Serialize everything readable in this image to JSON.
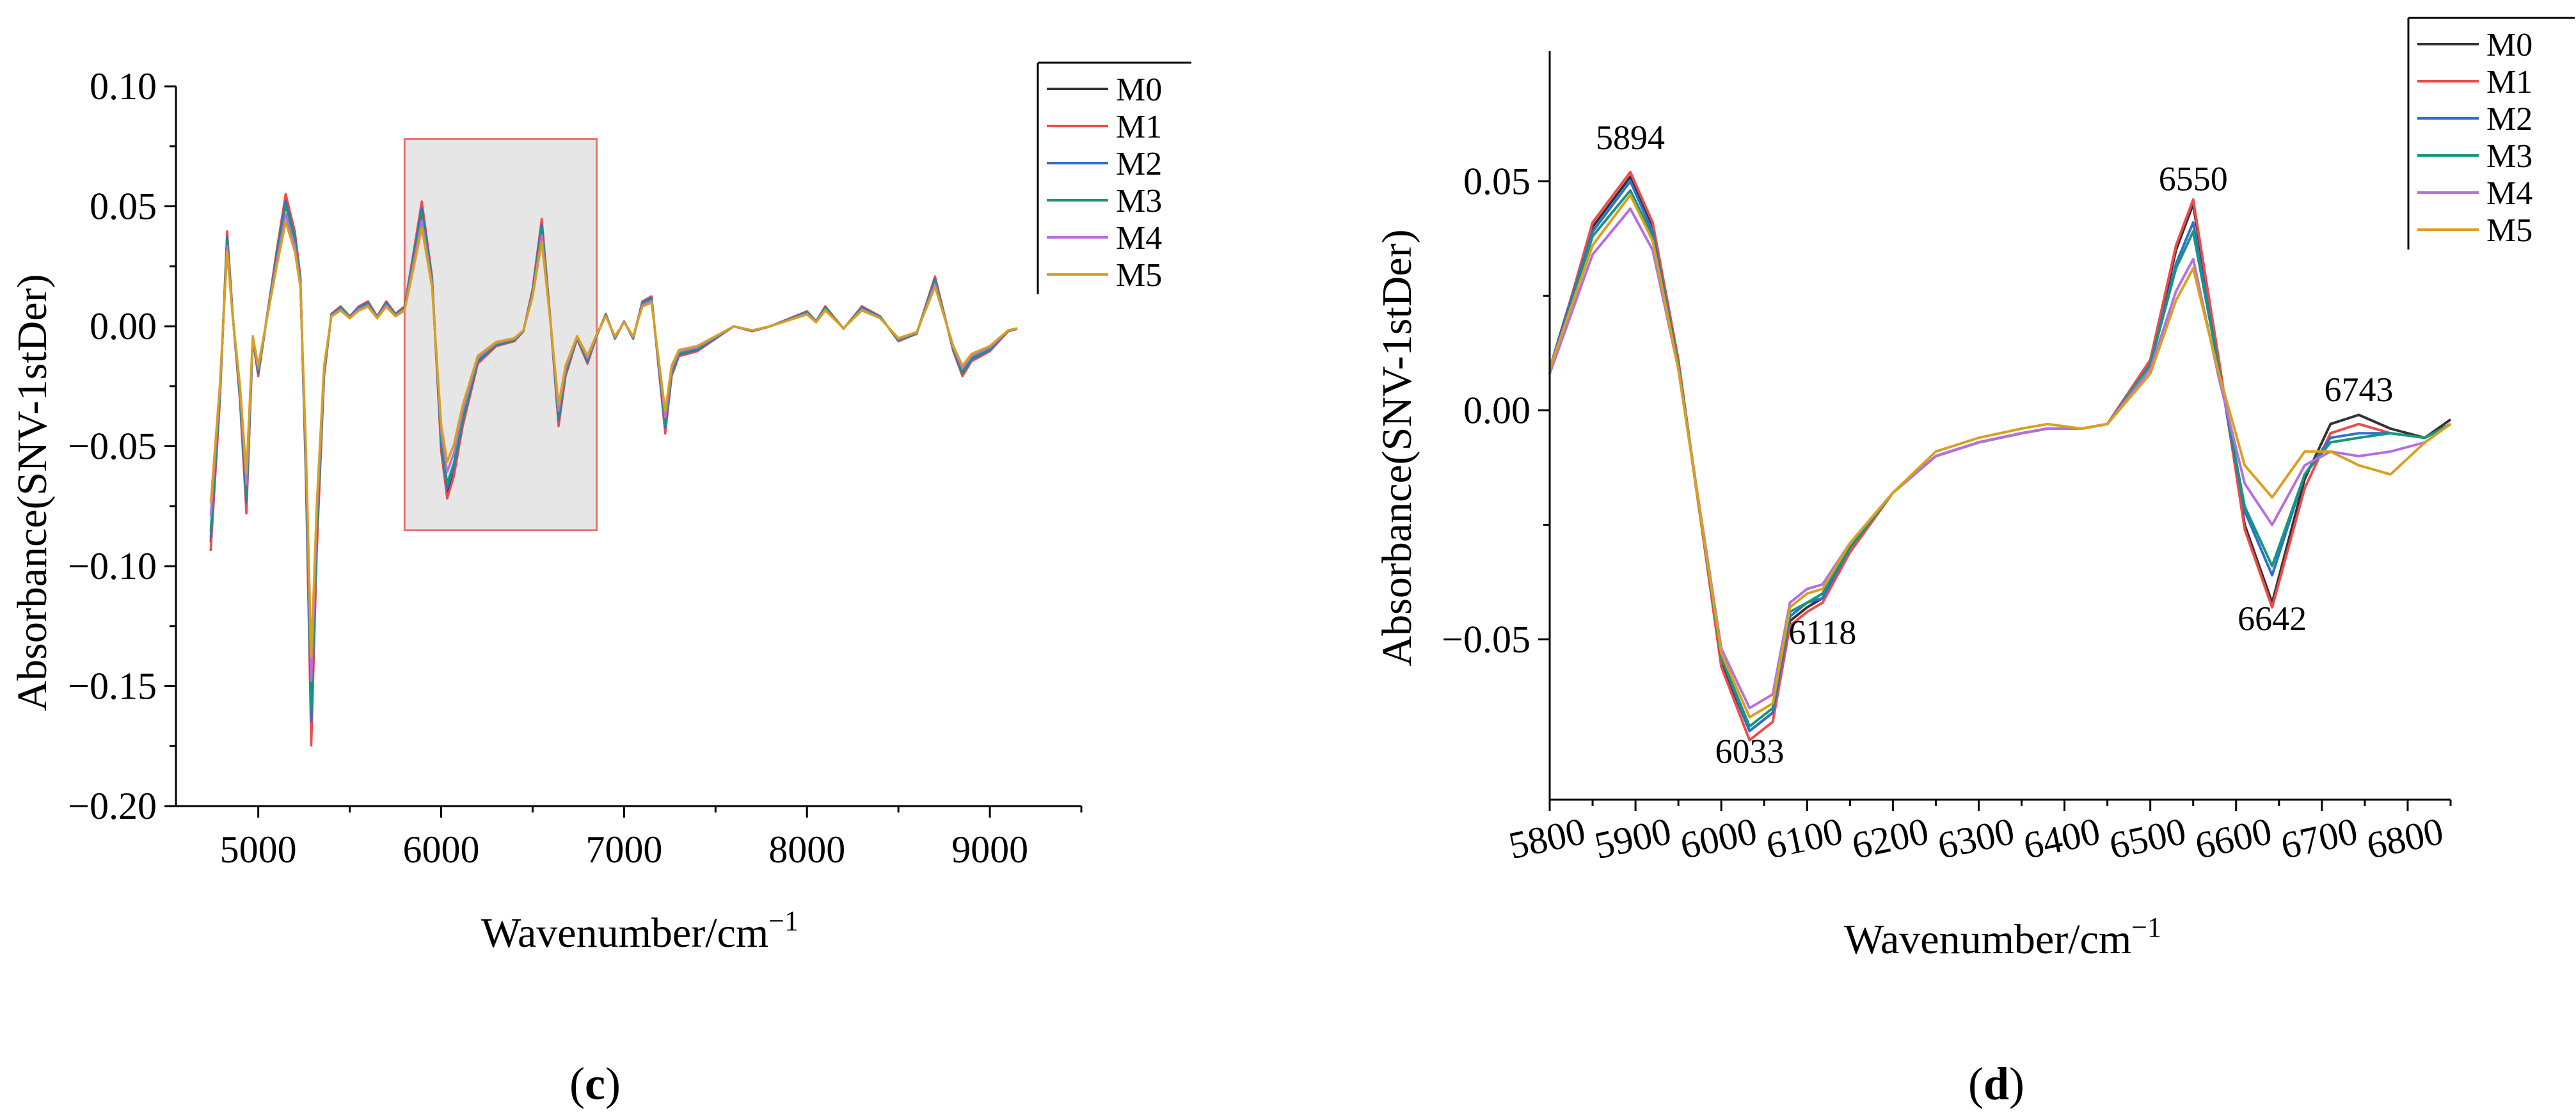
{
  "colors": {
    "M0": "#333333",
    "M1": "#ee4b4b",
    "M2": "#2f6fd0",
    "M3": "#14987a",
    "M4": "#b56fe0",
    "M5": "#d9a020",
    "highlight_fill": "#e6e6e6",
    "highlight_stroke": "#f07070"
  },
  "chart_data": [
    {
      "type": "line",
      "panel": "c",
      "panel_label": "c",
      "xlabel": "Wavenumber/cm",
      "xlabel_sup": "−1",
      "ylabel": "Absorbance(SNV-1stDer)",
      "xlim": [
        4550,
        9500
      ],
      "ylim": [
        -0.2,
        0.1
      ],
      "xticks": [
        5000,
        6000,
        7000,
        8000,
        9000
      ],
      "yticks": [
        -0.2,
        -0.15,
        -0.1,
        -0.05,
        0.0,
        0.05,
        0.1
      ],
      "ytick_labels": [
        "−0.20",
        "−0.15",
        "−0.10",
        "−0.05",
        "0.00",
        "0.05",
        "0.10"
      ],
      "grid": false,
      "legend": [
        "M0",
        "M1",
        "M2",
        "M3",
        "M4",
        "M5"
      ],
      "legend_position": "top-right",
      "highlight_region": {
        "x": [
          5800,
          6850
        ],
        "y": [
          -0.085,
          0.078
        ]
      },
      "base_x": [
        4740,
        4790,
        4830,
        4860,
        4900,
        4935,
        4970,
        5000,
        5050,
        5100,
        5150,
        5200,
        5230,
        5260,
        5290,
        5320,
        5360,
        5400,
        5450,
        5500,
        5550,
        5600,
        5650,
        5700,
        5750,
        5800,
        5850,
        5894,
        5950,
        6000,
        6033,
        6070,
        6118,
        6200,
        6300,
        6400,
        6450,
        6500,
        6550,
        6600,
        6642,
        6680,
        6743,
        6800,
        6850,
        6900,
        6950,
        7000,
        7050,
        7100,
        7150,
        7180,
        7225,
        7260,
        7300,
        7400,
        7500,
        7600,
        7700,
        7800,
        7900,
        8000,
        8050,
        8100,
        8200,
        8300,
        8400,
        8500,
        8600,
        8700,
        8750,
        8800,
        8850,
        8900,
        9000,
        9100,
        9150
      ],
      "base_y": [
        -0.09,
        -0.03,
        0.038,
        0.005,
        -0.03,
        -0.075,
        -0.005,
        -0.02,
        0.005,
        0.03,
        0.053,
        0.038,
        0.02,
        -0.06,
        -0.168,
        -0.09,
        -0.02,
        0.005,
        0.008,
        0.004,
        0.008,
        0.01,
        0.004,
        0.01,
        0.005,
        0.008,
        0.03,
        0.05,
        0.02,
        -0.05,
        -0.069,
        -0.06,
        -0.04,
        -0.015,
        -0.008,
        -0.006,
        -0.002,
        0.015,
        0.043,
        0.0,
        -0.04,
        -0.02,
        -0.005,
        -0.015,
        -0.004,
        0.005,
        -0.005,
        0.002,
        -0.005,
        0.01,
        0.012,
        -0.01,
        -0.043,
        -0.02,
        -0.012,
        -0.01,
        -0.005,
        0.0,
        -0.002,
        0.0,
        0.003,
        0.006,
        0.002,
        0.008,
        -0.001,
        0.008,
        0.004,
        -0.006,
        -0.003,
        0.02,
        0.005,
        -0.01,
        -0.02,
        -0.014,
        -0.01,
        -0.002,
        -0.001
      ],
      "series": [
        {
          "name": "M0",
          "scale": 1.0,
          "offset": 0.0
        },
        {
          "name": "M1",
          "scale": 1.04,
          "offset": 0.0
        },
        {
          "name": "M2",
          "scale": 0.98,
          "offset": 0.0
        },
        {
          "name": "M3",
          "scale": 0.95,
          "offset": 0.0
        },
        {
          "name": "M4",
          "scale": 0.88,
          "offset": 0.0
        },
        {
          "name": "M5",
          "scale": 0.82,
          "offset": 0.0
        }
      ]
    },
    {
      "type": "line",
      "panel": "d",
      "panel_label": "d",
      "xlabel": "Wavenumber/cm",
      "xlabel_sup": "−1",
      "ylabel": "Absorbance(SNV-1stDer)",
      "xlim": [
        5800,
        6850
      ],
      "ylim": [
        -0.085,
        0.077
      ],
      "xticks": [
        5800,
        5900,
        6000,
        6100,
        6200,
        6300,
        6400,
        6500,
        6600,
        6700,
        6800
      ],
      "yticks": [
        -0.05,
        0.0,
        0.05
      ],
      "ytick_labels": [
        "−0.05",
        "0.00",
        "0.05"
      ],
      "grid": false,
      "legend": [
        "M0",
        "M1",
        "M2",
        "M3",
        "M4",
        "M5"
      ],
      "legend_position": "top-right",
      "annotations": [
        {
          "text": "5894",
          "x": 5894,
          "y": 0.057
        },
        {
          "text": "6033",
          "x": 6033,
          "y": -0.077
        },
        {
          "text": "6118",
          "x": 6118,
          "y": -0.051
        },
        {
          "text": "6550",
          "x": 6550,
          "y": 0.048
        },
        {
          "text": "6642",
          "x": 6642,
          "y": -0.048
        },
        {
          "text": "6743",
          "x": 6743,
          "y": 0.002
        }
      ],
      "x": [
        5800,
        5850,
        5894,
        5920,
        5950,
        6000,
        6033,
        6060,
        6080,
        6100,
        6118,
        6150,
        6200,
        6250,
        6300,
        6350,
        6380,
        6420,
        6450,
        6500,
        6530,
        6550,
        6580,
        6610,
        6642,
        6680,
        6710,
        6743,
        6780,
        6820,
        6850
      ],
      "series": [
        {
          "name": "M0",
          "values": [
            0.009,
            0.04,
            0.051,
            0.04,
            0.01,
            -0.055,
            -0.07,
            -0.066,
            -0.046,
            -0.043,
            -0.041,
            -0.03,
            -0.018,
            -0.01,
            -0.007,
            -0.005,
            -0.004,
            -0.004,
            -0.003,
            0.01,
            0.035,
            0.045,
            0.01,
            -0.025,
            -0.042,
            -0.015,
            -0.003,
            -0.001,
            -0.004,
            -0.006,
            -0.002
          ]
        },
        {
          "name": "M1",
          "values": [
            0.008,
            0.041,
            0.052,
            0.041,
            0.011,
            -0.056,
            -0.072,
            -0.068,
            -0.047,
            -0.044,
            -0.042,
            -0.031,
            -0.018,
            -0.01,
            -0.007,
            -0.005,
            -0.004,
            -0.004,
            -0.003,
            0.011,
            0.036,
            0.046,
            0.011,
            -0.026,
            -0.043,
            -0.017,
            -0.005,
            -0.003,
            -0.005,
            -0.006,
            -0.003
          ]
        },
        {
          "name": "M2",
          "values": [
            0.009,
            0.039,
            0.05,
            0.039,
            0.01,
            -0.054,
            -0.07,
            -0.066,
            -0.045,
            -0.042,
            -0.041,
            -0.03,
            -0.018,
            -0.01,
            -0.007,
            -0.005,
            -0.004,
            -0.004,
            -0.003,
            0.01,
            0.032,
            0.041,
            0.009,
            -0.022,
            -0.036,
            -0.014,
            -0.006,
            -0.005,
            -0.005,
            -0.006,
            -0.003
          ]
        },
        {
          "name": "M3",
          "values": [
            0.008,
            0.038,
            0.048,
            0.038,
            0.01,
            -0.054,
            -0.069,
            -0.065,
            -0.044,
            -0.042,
            -0.04,
            -0.03,
            -0.018,
            -0.01,
            -0.007,
            -0.005,
            -0.004,
            -0.004,
            -0.003,
            0.01,
            0.031,
            0.039,
            0.009,
            -0.021,
            -0.034,
            -0.014,
            -0.007,
            -0.006,
            -0.005,
            -0.006,
            -0.003
          ]
        },
        {
          "name": "M4",
          "values": [
            0.008,
            0.034,
            0.044,
            0.035,
            0.009,
            -0.052,
            -0.065,
            -0.062,
            -0.042,
            -0.039,
            -0.038,
            -0.029,
            -0.018,
            -0.01,
            -0.007,
            -0.005,
            -0.004,
            -0.004,
            -0.003,
            0.009,
            0.026,
            0.033,
            0.007,
            -0.016,
            -0.025,
            -0.012,
            -0.009,
            -0.01,
            -0.009,
            -0.007,
            -0.003
          ]
        },
        {
          "name": "M5",
          "values": [
            0.009,
            0.036,
            0.047,
            0.037,
            0.009,
            -0.053,
            -0.067,
            -0.064,
            -0.043,
            -0.04,
            -0.039,
            -0.029,
            -0.018,
            -0.009,
            -0.006,
            -0.004,
            -0.003,
            -0.004,
            -0.003,
            0.008,
            0.024,
            0.031,
            0.008,
            -0.012,
            -0.019,
            -0.009,
            -0.009,
            -0.012,
            -0.014,
            -0.007,
            -0.003
          ]
        }
      ]
    }
  ]
}
